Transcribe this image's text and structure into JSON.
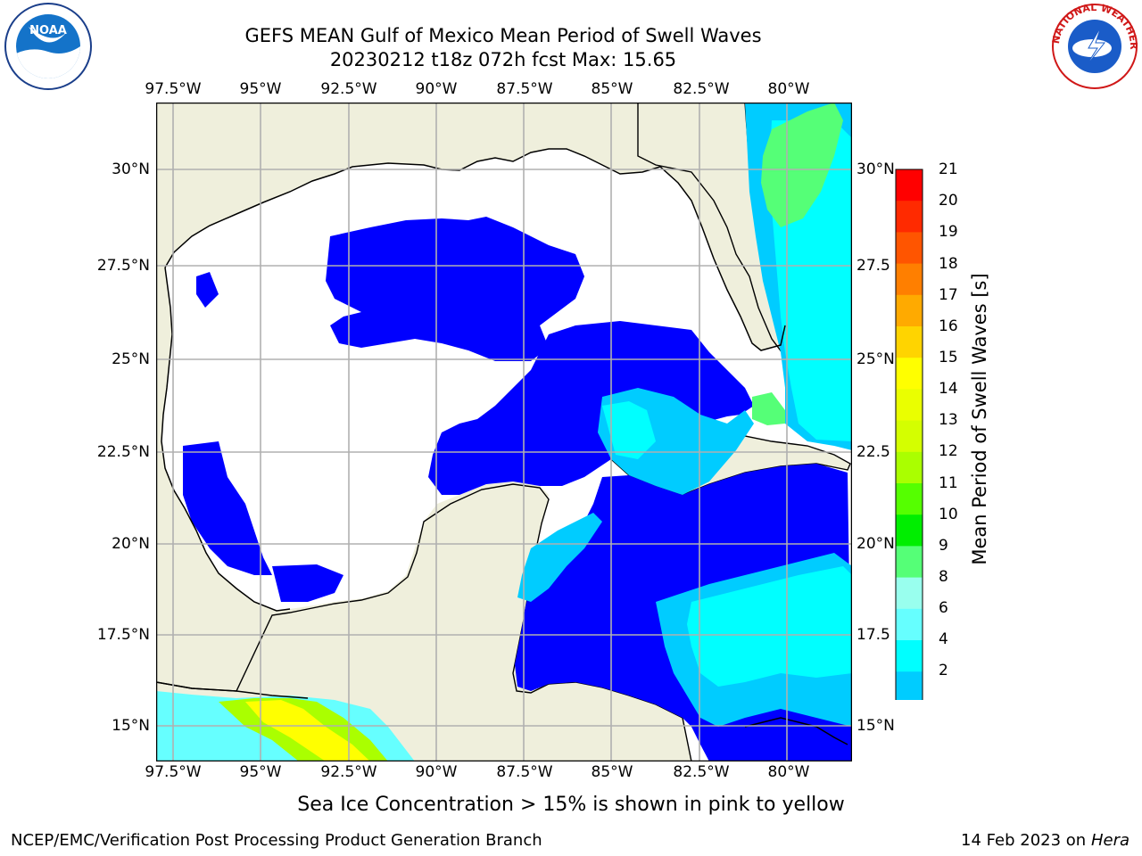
{
  "title": {
    "line1": "GEFS MEAN Gulf of Mexico Mean Period of Swell Waves",
    "line2": "20230212 t18z 072h fcst    Max: 15.65"
  },
  "axes": {
    "lon_labels": [
      "97.5°W",
      "95°W",
      "92.5°W",
      "90°W",
      "87.5°W",
      "85°W",
      "82.5°W",
      "80°W"
    ],
    "lat_labels_left": [
      "30°N",
      "27.5°N",
      "25°N",
      "22.5°N",
      "20°N",
      "17.5°N",
      "15°N"
    ],
    "lat_labels_right": [
      "30°N",
      "27.5",
      "25°N",
      "22.5",
      "20°N",
      "17.5",
      "15°N"
    ]
  },
  "colorbar": {
    "label": "Mean Period of Swell Waves [s]",
    "ticks": [
      "21",
      "20",
      "19",
      "18",
      "17",
      "16",
      "15",
      "14",
      "13",
      "12",
      "11",
      "10",
      "9",
      "8",
      "6",
      "4",
      "2"
    ],
    "colors": [
      "#ff0000",
      "#ff2a00",
      "#ff5500",
      "#ff7f00",
      "#ffaa00",
      "#ffd400",
      "#ffff00",
      "#eaff00",
      "#d4ff00",
      "#aaff00",
      "#55ff00",
      "#00ee00",
      "#55ff77",
      "#99ffee",
      "#66ffff",
      "#00ffff",
      "#00ccff",
      "#0066ff",
      "#0000ff"
    ]
  },
  "note": "Sea Ice Concentration > 15% is shown in pink to yellow",
  "footer": {
    "left": "NCEP/EMC/Verification Post Processing Product Generation Branch",
    "right_text": "14 Feb 2023 on",
    "right_host": "Hera"
  },
  "logos": {
    "noaa_text": "NOAA",
    "nws_text": "NATIONAL WEATHER SERVICE"
  },
  "map_colors": {
    "land": "#efefdc",
    "ocean_nodata": "#ffffff",
    "swell_blue": "#0000ff",
    "swell_light": "#00ccff",
    "swell_cyan": "#00ffff",
    "swell_green": "#55ff77",
    "swell_yellow": "#ffff00"
  }
}
